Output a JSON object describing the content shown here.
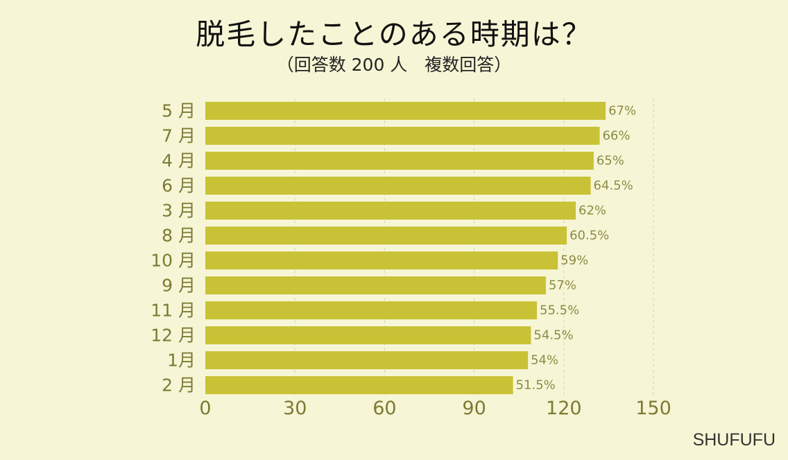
{
  "title": "脱毛したことのある時期は？",
  "subtitle": "（回答数 200 人　複数回答）",
  "brand": "SHUFUFU",
  "colors": {
    "background": "#f6f6d6",
    "bar": "#c9c236",
    "axis_text": "#7c7a33",
    "value_text": "#8c8a45",
    "grid": "#d2d2bc"
  },
  "chart_data": {
    "type": "bar",
    "orientation": "horizontal",
    "categories": [
      "5 月",
      "7 月",
      "4 月",
      "6 月",
      "3 月",
      "8 月",
      "10 月",
      "9 月",
      "11 月",
      "12 月",
      "1月",
      "2 月"
    ],
    "values": [
      134,
      132,
      130,
      129,
      124,
      121,
      118,
      114,
      111,
      109,
      108,
      103
    ],
    "labels": [
      "67%",
      "66%",
      "65%",
      "64.5%",
      "62%",
      "60.5%",
      "59%",
      "57%",
      "55.5%",
      "54.5%",
      "54%",
      "51.5%"
    ],
    "xlim": [
      0,
      150
    ],
    "xticks": [
      "0",
      "30",
      "60",
      "90",
      "120",
      "150"
    ],
    "xtick_values": [
      0,
      30,
      60,
      90,
      120,
      150
    ],
    "grid": "vertical dashed",
    "legend": "none"
  }
}
